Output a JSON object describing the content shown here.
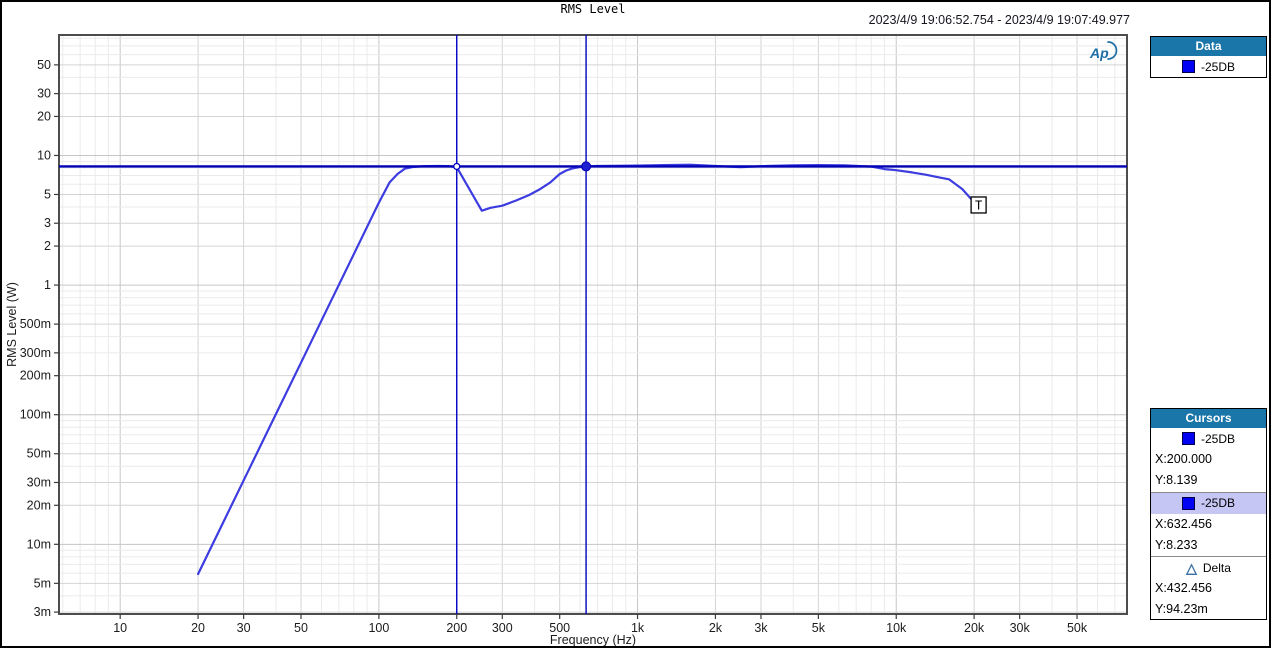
{
  "window": {
    "title": "RMS Level",
    "timestamp_range": "2023/4/9 19:06:52.754 - 2023/4/9 19:07:49.977"
  },
  "logo_text": "Ap",
  "data_panel": {
    "header": "Data",
    "series_label": "-25DB",
    "series_swatch_color": "#0202f2"
  },
  "cursors_panel": {
    "header": "Cursors",
    "cursor1": {
      "label": "-25DB",
      "x_text": "X:200.000",
      "y_text": "Y:8.139"
    },
    "cursor2": {
      "label": "-25DB",
      "x_text": "X:632.456",
      "y_text": "Y:8.233",
      "highlighted": true
    },
    "delta": {
      "label": "Delta",
      "x_text": "X:432.456",
      "y_text": "Y:94.23m"
    }
  },
  "colors": {
    "panel_header_blue": "#1a75a9",
    "highlight_row": "#c6c6f4",
    "series_blue": "#3c3ce0",
    "cursor_line_blue": "#0000c4",
    "logo_blue": "#1d6fa6"
  },
  "chart_data": {
    "type": "line",
    "title": "RMS Level",
    "xlabel": "Frequency (Hz)",
    "ylabel": "RMS Level (W)",
    "xscale": "log",
    "yscale": "log",
    "xlim": [
      5.8,
      78000
    ],
    "ylim": [
      0.0029,
      85
    ],
    "grid": true,
    "legend_position": "right-panel",
    "x_ticks": [
      [
        10,
        "10"
      ],
      [
        20,
        "20"
      ],
      [
        30,
        "30"
      ],
      [
        50,
        "50"
      ],
      [
        100,
        "100"
      ],
      [
        200,
        "200"
      ],
      [
        300,
        "300"
      ],
      [
        500,
        "500"
      ],
      [
        1000,
        "1k"
      ],
      [
        2000,
        "2k"
      ],
      [
        3000,
        "3k"
      ],
      [
        5000,
        "5k"
      ],
      [
        10000,
        "10k"
      ],
      [
        20000,
        "20k"
      ],
      [
        30000,
        "30k"
      ],
      [
        50000,
        "50k"
      ]
    ],
    "y_ticks": [
      [
        0.003,
        "3m"
      ],
      [
        0.005,
        "5m"
      ],
      [
        0.01,
        "10m"
      ],
      [
        0.02,
        "20m"
      ],
      [
        0.03,
        "30m"
      ],
      [
        0.05,
        "50m"
      ],
      [
        0.1,
        "100m"
      ],
      [
        0.2,
        "200m"
      ],
      [
        0.3,
        "300m"
      ],
      [
        0.5,
        "500m"
      ],
      [
        1,
        "1"
      ],
      [
        2,
        "2"
      ],
      [
        3,
        "3"
      ],
      [
        5,
        "5"
      ],
      [
        10,
        "10"
      ],
      [
        20,
        "20"
      ],
      [
        30,
        "30"
      ],
      [
        50,
        "50"
      ]
    ],
    "series": [
      {
        "name": "-25DB",
        "color": "#3c3ce0",
        "points": [
          [
            20,
            0.0059
          ],
          [
            25,
            0.0147
          ],
          [
            31.5,
            0.038
          ],
          [
            40,
            0.101
          ],
          [
            50,
            0.252
          ],
          [
            63,
            0.652
          ],
          [
            80,
            1.73
          ],
          [
            100,
            4.33
          ],
          [
            110,
            6.2
          ],
          [
            118,
            7.2
          ],
          [
            126,
            7.9
          ],
          [
            135,
            8.15
          ],
          [
            150,
            8.28
          ],
          [
            170,
            8.3
          ],
          [
            185,
            8.28
          ],
          [
            200,
            8.139
          ],
          [
            250,
            3.75
          ],
          [
            270,
            3.95
          ],
          [
            300,
            4.1
          ],
          [
            340,
            4.5
          ],
          [
            380,
            4.95
          ],
          [
            420,
            5.5
          ],
          [
            460,
            6.2
          ],
          [
            500,
            7.2
          ],
          [
            530,
            7.65
          ],
          [
            560,
            7.95
          ],
          [
            600,
            8.15
          ],
          [
            632.456,
            8.233
          ],
          [
            700,
            8.3
          ],
          [
            800,
            8.32
          ],
          [
            1000,
            8.35
          ],
          [
            1250,
            8.42
          ],
          [
            1600,
            8.48
          ],
          [
            2000,
            8.3
          ],
          [
            2500,
            8.12
          ],
          [
            3150,
            8.3
          ],
          [
            4000,
            8.4
          ],
          [
            5000,
            8.42
          ],
          [
            6300,
            8.38
          ],
          [
            8000,
            8.2
          ],
          [
            9000,
            7.85
          ],
          [
            10000,
            7.7
          ],
          [
            11500,
            7.4
          ],
          [
            13000,
            7.1
          ],
          [
            14500,
            6.8
          ],
          [
            16000,
            6.55
          ],
          [
            18000,
            5.5
          ],
          [
            20000,
            4.35
          ]
        ]
      }
    ],
    "cursors": {
      "vertical_x": [
        200,
        632.456
      ],
      "horizontal_y": 8.233,
      "open_point": [
        200,
        8.233
      ],
      "filled_point": [
        632.456,
        8.233
      ],
      "line_color": "#0000c4"
    },
    "end_marker": {
      "label": "T",
      "x": 20000,
      "y": 4.3
    }
  }
}
